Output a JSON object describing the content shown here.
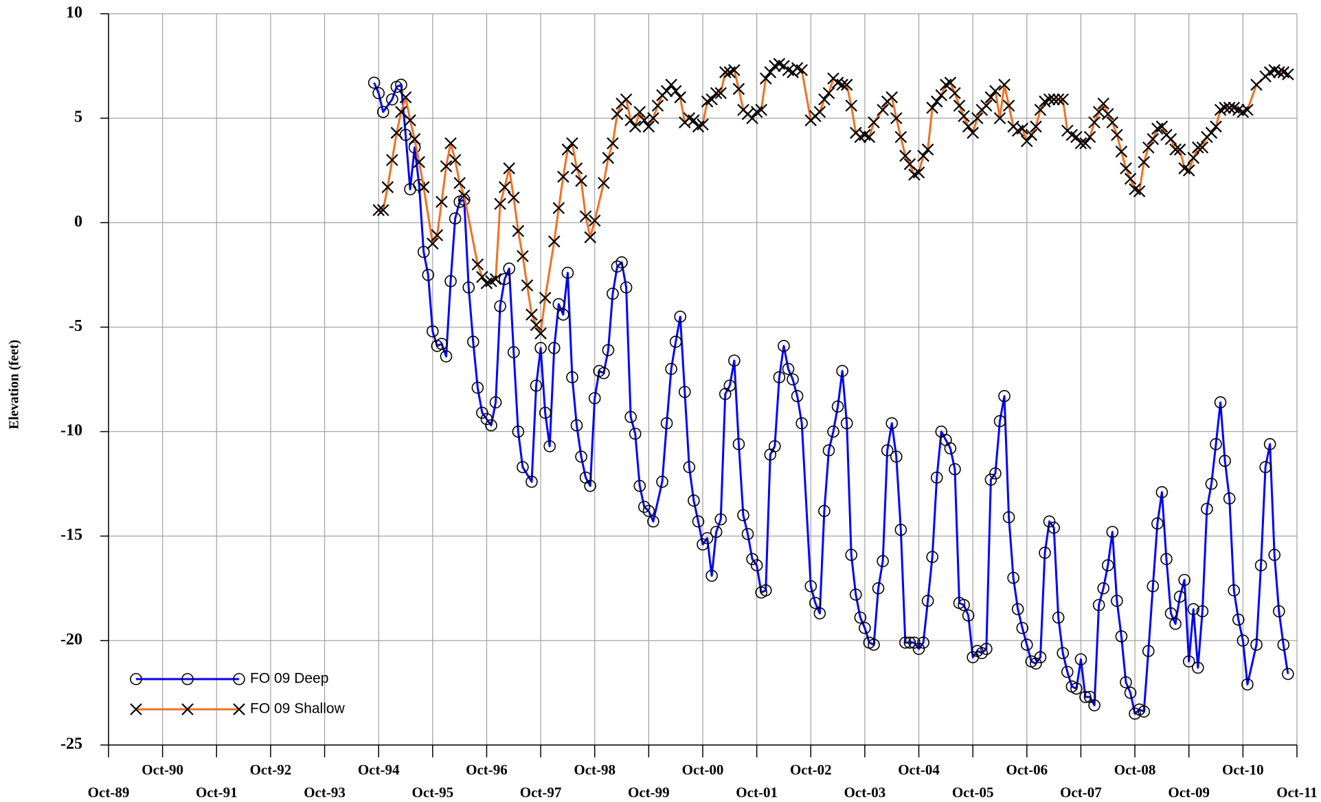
{
  "chart_data": {
    "type": "line",
    "ylabel": "Elevation (feet)",
    "xlim": [
      "1989-10",
      "2011-10"
    ],
    "xticks": [
      {
        "value": "1989-10",
        "label": "Oct-89"
      },
      {
        "value": "1990-10",
        "label": "Oct-90"
      },
      {
        "value": "1991-10",
        "label": "Oct-91"
      },
      {
        "value": "1992-10",
        "label": "Oct-92"
      },
      {
        "value": "1993-10",
        "label": "Oct-93"
      },
      {
        "value": "1994-10",
        "label": "Oct-94"
      },
      {
        "value": "1995-10",
        "label": "Oct-95"
      },
      {
        "value": "1996-10",
        "label": "Oct-96"
      },
      {
        "value": "1997-10",
        "label": "Oct-97"
      },
      {
        "value": "1998-10",
        "label": "Oct-98"
      },
      {
        "value": "1999-10",
        "label": "Oct-99"
      },
      {
        "value": "2000-10",
        "label": "Oct-00"
      },
      {
        "value": "2001-10",
        "label": "Oct-01"
      },
      {
        "value": "2002-10",
        "label": "Oct-02"
      },
      {
        "value": "2003-10",
        "label": "Oct-03"
      },
      {
        "value": "2004-10",
        "label": "Oct-04"
      },
      {
        "value": "2005-10",
        "label": "Oct-05"
      },
      {
        "value": "2006-10",
        "label": "Oct-06"
      },
      {
        "value": "2007-10",
        "label": "Oct-07"
      },
      {
        "value": "2008-10",
        "label": "Oct-08"
      },
      {
        "value": "2009-10",
        "label": "Oct-09"
      },
      {
        "value": "2010-10",
        "label": "Oct-10"
      },
      {
        "value": "2011-10",
        "label": "Oct-11"
      }
    ],
    "ylim": [
      -25,
      10
    ],
    "yticks": [
      -25,
      -20,
      -15,
      -10,
      -5,
      0,
      5,
      10
    ],
    "grid": true,
    "legend": "lower left",
    "series": [
      {
        "name": "FO 09 Deep",
        "color": "#0000ff",
        "marker": "circle",
        "x": [
          "1994-09",
          "1994-10",
          "1994-11",
          "1995-01",
          "1995-02",
          "1995-03",
          "1995-04",
          "1995-05",
          "1995-06",
          "1995-07",
          "1995-08",
          "1995-09",
          "1995-10",
          "1995-11",
          "1995-12",
          "1996-01",
          "1996-02",
          "1996-03",
          "1996-04",
          "1996-05",
          "1996-06",
          "1996-07",
          "1996-08",
          "1996-09",
          "1996-10",
          "1996-11",
          "1996-12",
          "1997-01",
          "1997-02",
          "1997-03",
          "1997-04",
          "1997-05",
          "1997-06",
          "1997-08",
          "1997-09",
          "1997-10",
          "1997-11",
          "1997-12",
          "1998-01",
          "1998-02",
          "1998-03",
          "1998-04",
          "1998-05",
          "1998-06",
          "1998-07",
          "1998-08",
          "1998-09",
          "1998-10",
          "1998-11",
          "1998-12",
          "1999-01",
          "1999-02",
          "1999-03",
          "1999-04",
          "1999-05",
          "1999-06",
          "1999-07",
          "1999-08",
          "1999-09",
          "1999-10",
          "1999-11",
          "2000-01",
          "2000-02",
          "2000-03",
          "2000-04",
          "2000-05",
          "2000-06",
          "2000-07",
          "2000-08",
          "2000-09",
          "2000-10",
          "2000-11",
          "2000-12",
          "2001-01",
          "2001-02",
          "2001-03",
          "2001-04",
          "2001-05",
          "2001-06",
          "2001-07",
          "2001-08",
          "2001-09",
          "2001-10",
          "2001-11",
          "2001-12",
          "2002-01",
          "2002-02",
          "2002-03",
          "2002-04",
          "2002-05",
          "2002-06",
          "2002-07",
          "2002-08",
          "2002-10",
          "2002-11",
          "2002-12",
          "2003-01",
          "2003-02",
          "2003-03",
          "2003-04",
          "2003-05",
          "2003-06",
          "2003-07",
          "2003-08",
          "2003-09",
          "2003-10",
          "2003-11",
          "2003-12",
          "2004-01",
          "2004-02",
          "2004-03",
          "2004-04",
          "2004-05",
          "2004-06",
          "2004-07",
          "2004-08",
          "2004-09",
          "2004-10",
          "2004-11",
          "2004-12",
          "2005-01",
          "2005-02",
          "2005-03",
          "2005-04",
          "2005-05",
          "2005-06",
          "2005-07",
          "2005-08",
          "2005-09",
          "2005-10",
          "2005-11",
          "2005-12",
          "2006-01",
          "2006-02",
          "2006-03",
          "2006-04",
          "2006-05",
          "2006-06",
          "2006-07",
          "2006-08",
          "2006-09",
          "2006-10",
          "2006-11",
          "2006-12",
          "2007-01",
          "2007-02",
          "2007-03",
          "2007-04",
          "2007-05",
          "2007-06",
          "2007-07",
          "2007-08",
          "2007-09",
          "2007-10",
          "2007-11",
          "2007-12",
          "2008-01",
          "2008-02",
          "2008-03",
          "2008-04",
          "2008-05",
          "2008-06",
          "2008-07",
          "2008-08",
          "2008-09",
          "2008-10",
          "2008-11",
          "2008-12",
          "2009-01",
          "2009-02",
          "2009-03",
          "2009-04",
          "2009-05",
          "2009-06",
          "2009-07",
          "2009-08",
          "2009-09",
          "2009-10",
          "2009-11",
          "2009-12",
          "2010-01",
          "2010-02",
          "2010-03",
          "2010-04",
          "2010-05",
          "2010-06",
          "2010-07",
          "2010-08",
          "2010-09",
          "2010-10",
          "2010-11",
          "2011-01",
          "2011-02",
          "2011-03",
          "2011-04",
          "2011-05",
          "2011-06",
          "2011-07",
          "2011-08"
        ],
        "values": [
          6.7,
          6.2,
          5.3,
          5.9,
          6.5,
          6.6,
          4.2,
          1.6,
          3.6,
          1.8,
          -1.4,
          -2.5,
          -5.2,
          -5.9,
          -5.8,
          -6.4,
          -2.8,
          0.2,
          1.0,
          1.1,
          -3.1,
          -5.7,
          -7.9,
          -9.1,
          -9.4,
          -9.7,
          -8.6,
          -4.0,
          -2.7,
          -2.2,
          -6.2,
          -10.0,
          -11.7,
          -12.4,
          -7.8,
          -6.0,
          -9.1,
          -10.7,
          -6.0,
          -3.9,
          -4.4,
          -2.4,
          -7.4,
          -9.7,
          -11.2,
          -12.2,
          -12.6,
          -8.4,
          -7.1,
          -7.2,
          -6.1,
          -3.4,
          -2.1,
          -1.9,
          -3.1,
          -9.3,
          -10.1,
          -12.6,
          -13.6,
          -13.8,
          -14.3,
          -12.4,
          -9.6,
          -7.0,
          -5.7,
          -4.5,
          -8.1,
          -11.7,
          -13.3,
          -14.3,
          -15.4,
          -15.1,
          -16.9,
          -14.8,
          -14.2,
          -8.2,
          -7.8,
          -6.6,
          -10.6,
          -14.0,
          -14.9,
          -16.1,
          -16.4,
          -17.7,
          -17.6,
          -11.1,
          -10.7,
          -7.4,
          -5.9,
          -7.0,
          -7.5,
          -8.3,
          -9.6,
          -17.4,
          -18.2,
          -18.7,
          -13.8,
          -10.9,
          -10.0,
          -8.8,
          -7.1,
          -9.6,
          -15.9,
          -17.8,
          -18.9,
          -19.4,
          -20.1,
          -20.2,
          -17.5,
          -16.2,
          -10.9,
          -9.6,
          -11.2,
          -14.7,
          -20.1,
          -20.1,
          -20.1,
          -20.4,
          -20.1,
          -18.1,
          -16.0,
          -12.2,
          -10.0,
          -10.4,
          -10.8,
          -11.8,
          -18.2,
          -18.3,
          -18.8,
          -20.8,
          -20.5,
          -20.6,
          -20.4,
          -12.3,
          -12.0,
          -9.5,
          -8.3,
          -14.1,
          -17.0,
          -18.5,
          -19.4,
          -20.2,
          -21.0,
          -21.1,
          -20.8,
          -15.8,
          -14.3,
          -14.6,
          -18.9,
          -20.6,
          -21.5,
          -22.2,
          -22.3,
          -20.9,
          -22.7,
          -22.7,
          -23.1,
          -18.3,
          -17.5,
          -16.4,
          -14.8,
          -18.1,
          -19.8,
          -22.0,
          -22.5,
          -23.5,
          -23.3,
          -23.4,
          -20.5,
          -17.4,
          -14.4,
          -12.9,
          -16.1,
          -18.7,
          -19.2,
          -17.9,
          -17.1,
          -21.0,
          -18.5,
          -21.3,
          -18.6,
          -13.7,
          -12.5,
          -10.6,
          -8.6,
          -11.4,
          -13.2,
          -17.6,
          -19.0,
          -20.0,
          -22.1,
          -20.2,
          -16.4,
          -11.7,
          -10.6,
          -15.9,
          -18.6,
          -20.2,
          -21.6
        ]
      },
      {
        "name": "FO 09 Shallow",
        "color": "#f07020",
        "marker": "x",
        "x": [
          "1994-10",
          "1994-11",
          "1994-12",
          "1995-01",
          "1995-02",
          "1995-03",
          "1995-04",
          "1995-05",
          "1995-06",
          "1995-07",
          "1995-08",
          "1995-10",
          "1995-11",
          "1995-12",
          "1996-01",
          "1996-02",
          "1996-03",
          "1996-04",
          "1996-05",
          "1996-08",
          "1996-09",
          "1996-10",
          "1996-11",
          "1996-12",
          "1997-01",
          "1997-02",
          "1997-03",
          "1997-04",
          "1997-05",
          "1997-06",
          "1997-07",
          "1997-08",
          "1997-09",
          "1997-10",
          "1997-11",
          "1998-01",
          "1998-02",
          "1998-03",
          "1998-04",
          "1998-05",
          "1998-06",
          "1998-07",
          "1998-08",
          "1998-09",
          "1998-10",
          "1998-12",
          "1999-01",
          "1999-02",
          "1999-03",
          "1999-04",
          "1999-05",
          "1999-06",
          "1999-07",
          "1999-08",
          "1999-09",
          "1999-10",
          "1999-11",
          "1999-12",
          "2000-01",
          "2000-02",
          "2000-03",
          "2000-04",
          "2000-05",
          "2000-06",
          "2000-07",
          "2000-08",
          "2000-09",
          "2000-10",
          "2000-11",
          "2000-12",
          "2001-01",
          "2001-02",
          "2001-03",
          "2001-04",
          "2001-05",
          "2001-06",
          "2001-07",
          "2001-08",
          "2001-09",
          "2001-10",
          "2001-11",
          "2001-12",
          "2002-01",
          "2002-02",
          "2002-03",
          "2002-04",
          "2002-05",
          "2002-06",
          "2002-07",
          "2002-08",
          "2002-10",
          "2002-11",
          "2002-12",
          "2003-01",
          "2003-02",
          "2003-03",
          "2003-04",
          "2003-05",
          "2003-06",
          "2003-07",
          "2003-08",
          "2003-09",
          "2003-10",
          "2003-11",
          "2003-12",
          "2004-02",
          "2004-03",
          "2004-04",
          "2004-05",
          "2004-06",
          "2004-07",
          "2004-08",
          "2004-09",
          "2004-10",
          "2004-11",
          "2004-12",
          "2005-01",
          "2005-02",
          "2005-03",
          "2005-04",
          "2005-05",
          "2005-06",
          "2005-07",
          "2005-08",
          "2005-09",
          "2005-10",
          "2005-11",
          "2005-12",
          "2006-01",
          "2006-02",
          "2006-03",
          "2006-04",
          "2006-05",
          "2006-06",
          "2006-07",
          "2006-08",
          "2006-09",
          "2006-10",
          "2006-11",
          "2006-12",
          "2007-01",
          "2007-02",
          "2007-03",
          "2007-04",
          "2007-05",
          "2007-06",
          "2007-07",
          "2007-08",
          "2007-09",
          "2007-10",
          "2007-11",
          "2007-12",
          "2008-01",
          "2008-02",
          "2008-03",
          "2008-04",
          "2008-05",
          "2008-06",
          "2008-07",
          "2008-08",
          "2008-09",
          "2008-10",
          "2008-11",
          "2008-12",
          "2009-01",
          "2009-02",
          "2009-03",
          "2009-04",
          "2009-05",
          "2009-06",
          "2009-07",
          "2009-08",
          "2009-09",
          "2009-10",
          "2009-11",
          "2009-12",
          "2010-01",
          "2010-02",
          "2010-03",
          "2010-04",
          "2010-05",
          "2010-06",
          "2010-07",
          "2010-08",
          "2010-09",
          "2010-10",
          "2010-11",
          "2011-01",
          "2011-03",
          "2011-04",
          "2011-05",
          "2011-06",
          "2011-07",
          "2011-08"
        ],
        "values": [
          0.6,
          0.6,
          1.7,
          3.0,
          4.3,
          5.3,
          6.0,
          4.9,
          4.0,
          2.9,
          1.7,
          -1.0,
          -0.6,
          1.0,
          2.7,
          3.8,
          3.0,
          1.9,
          1.3,
          -2.0,
          -2.6,
          -2.9,
          -2.8,
          -2.7,
          0.9,
          1.7,
          2.6,
          1.2,
          -0.4,
          -1.6,
          -3.0,
          -4.4,
          -4.9,
          -5.3,
          -3.6,
          -0.9,
          0.7,
          2.2,
          3.5,
          3.8,
          2.6,
          2.0,
          0.3,
          -0.7,
          0.1,
          1.9,
          3.1,
          3.8,
          5.2,
          5.7,
          5.9,
          4.9,
          4.6,
          5.3,
          4.9,
          4.6,
          5.0,
          5.6,
          6.1,
          6.3,
          6.6,
          6.3,
          6.0,
          4.8,
          5.0,
          4.9,
          4.6,
          4.7,
          5.8,
          5.9,
          6.2,
          6.2,
          7.2,
          7.2,
          7.3,
          6.4,
          5.4,
          5.2,
          5.0,
          5.3,
          5.4,
          6.9,
          7.2,
          7.5,
          7.6,
          7.5,
          7.3,
          7.2,
          7.4,
          7.3,
          4.9,
          5.1,
          5.3,
          5.9,
          6.2,
          6.9,
          6.7,
          6.6,
          6.6,
          5.6,
          4.3,
          4.1,
          4.2,
          4.1,
          4.8,
          5.4,
          5.8,
          6.0,
          5.0,
          4.1,
          3.2,
          2.8,
          2.3,
          2.4,
          3.2,
          3.5,
          5.5,
          5.8,
          6.1,
          6.6,
          6.7,
          6.2,
          5.6,
          5.1,
          4.6,
          4.3,
          5.0,
          5.4,
          5.6,
          6.0,
          6.3,
          5.0,
          6.6,
          5.6,
          4.6,
          4.4,
          4.5,
          3.9,
          4.2,
          4.6,
          5.4,
          5.8,
          5.9,
          5.9,
          5.9,
          5.9,
          4.4,
          4.2,
          4.1,
          3.8,
          3.8,
          4.1,
          4.8,
          5.3,
          5.7,
          5.2,
          4.8,
          4.2,
          3.4,
          2.6,
          2.1,
          1.6,
          1.5,
          2.9,
          3.6,
          4.0,
          4.5,
          4.6,
          4.2,
          4.0,
          3.5,
          3.5,
          2.6,
          2.5,
          3.1,
          3.6,
          3.6,
          4.1,
          4.3,
          4.6,
          5.4,
          5.5,
          5.5,
          5.5,
          5.4,
          5.3,
          5.4,
          6.6,
          7.0,
          7.2,
          7.3,
          7.2,
          7.2,
          7.1
        ]
      }
    ]
  }
}
